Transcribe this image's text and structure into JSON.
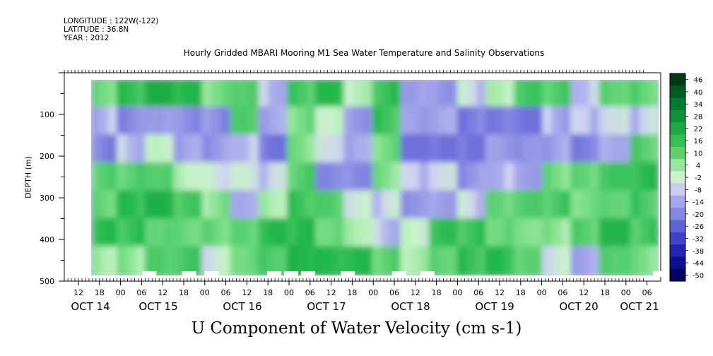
{
  "meta": {
    "longitude": "LONGITUDE : 122W(-122)",
    "latitude": "LATITUDE : 36.8N",
    "year": "YEAR : 2012"
  },
  "title": "Hourly Gridded MBARI Mooring M1 Sea Water Temperature and Salinity Observations",
  "variable_label": "U Component of Water Velocity (cm s-1)",
  "chart_data": {
    "type": "heatmap",
    "title": "Hourly Gridded MBARI Mooring M1 Sea Water Temperature and Salinity Observations",
    "xlabel": "",
    "ylabel": "DEPTH (m)",
    "colorbar_label": "U Component of Water Velocity (cm s-1)",
    "y_axis": {
      "range": [
        500,
        0
      ],
      "ticks": [
        100,
        200,
        300,
        400,
        500
      ],
      "reversed": true
    },
    "x_axis": {
      "hour_tick_labels": [
        "12",
        "18",
        "00",
        "06",
        "12",
        "18",
        "00",
        "06",
        "12",
        "18",
        "00",
        "06",
        "12",
        "18",
        "00",
        "06",
        "12",
        "18",
        "00",
        "06",
        "12",
        "18",
        "00",
        "06",
        "12",
        "18",
        "00",
        "06",
        "12",
        "18",
        "00",
        "06"
      ],
      "date_labels": [
        "OCT 14",
        "OCT 15",
        "OCT 16",
        "OCT 17",
        "OCT 18",
        "OCT 19",
        "OCT 20",
        "OCT 21"
      ]
    },
    "colorbar": {
      "levels": [
        46,
        40,
        34,
        28,
        22,
        16,
        10,
        4,
        -2,
        -8,
        -14,
        -20,
        -26,
        -32,
        -38,
        -44,
        -50
      ],
      "colors": {
        "strong_positive": "#004d1a",
        "positive": "#22b84a",
        "weak_positive": "#bff0c0",
        "weak_negative": "#c8c8f2",
        "negative": "#8c8ce6",
        "strong_negative": "#000066"
      }
    },
    "data_extent": {
      "x_start": "OCT 14 18",
      "x_end": "OCT 21 09",
      "depth_top": 20,
      "depth_bottom": 485
    },
    "columns": [
      {
        "t": 0.0,
        "w": 0.045,
        "p": [
          8,
          -12,
          -14,
          6,
          10,
          12,
          4
        ]
      },
      {
        "t": 0.045,
        "w": 0.05,
        "p": [
          12,
          -14,
          -10,
          10,
          14,
          14,
          2
        ]
      },
      {
        "t": 0.095,
        "w": 0.05,
        "p": [
          18,
          -8,
          -6,
          14,
          16,
          12,
          6
        ]
      },
      {
        "t": 0.145,
        "w": 0.05,
        "p": [
          14,
          -12,
          -14,
          2,
          8,
          10,
          8
        ]
      },
      {
        "t": 0.195,
        "w": 0.05,
        "p": [
          6,
          -16,
          -12,
          -6,
          4,
          6,
          -4
        ]
      },
      {
        "t": 0.245,
        "w": 0.05,
        "p": [
          14,
          6,
          -4,
          -8,
          -6,
          4,
          10
        ]
      },
      {
        "t": 0.295,
        "w": 0.05,
        "p": [
          -6,
          -14,
          -16,
          -10,
          4,
          12,
          14
        ]
      },
      {
        "t": 0.345,
        "w": 0.05,
        "p": [
          10,
          6,
          4,
          10,
          12,
          16,
          18
        ]
      },
      {
        "t": 0.395,
        "w": 0.05,
        "p": [
          12,
          2,
          -10,
          -12,
          6,
          10,
          12
        ]
      },
      {
        "t": 0.445,
        "w": 0.05,
        "p": [
          -4,
          -10,
          -14,
          -12,
          -8,
          4,
          12
        ]
      },
      {
        "t": 0.495,
        "w": 0.05,
        "p": [
          14,
          12,
          6,
          4,
          -6,
          -8,
          8
        ]
      },
      {
        "t": 0.545,
        "w": 0.05,
        "p": [
          -8,
          -16,
          -18,
          -12,
          -10,
          -6,
          4
        ]
      },
      {
        "t": 0.595,
        "w": 0.05,
        "p": [
          -10,
          -14,
          -16,
          -10,
          -8,
          10,
          12
        ]
      },
      {
        "t": 0.645,
        "w": 0.05,
        "p": [
          -6,
          -18,
          -20,
          -14,
          -6,
          12,
          14
        ]
      },
      {
        "t": 0.695,
        "w": 0.05,
        "p": [
          -4,
          -14,
          -16,
          -6,
          4,
          10,
          12
        ]
      },
      {
        "t": 0.745,
        "w": 0.05,
        "p": [
          8,
          -16,
          -18,
          -8,
          6,
          8,
          4
        ]
      },
      {
        "t": 0.795,
        "w": 0.05,
        "p": [
          10,
          -10,
          -12,
          6,
          10,
          4,
          -6
        ]
      },
      {
        "t": 0.845,
        "w": 0.05,
        "p": [
          -4,
          -12,
          -14,
          4,
          8,
          6,
          -8
        ]
      },
      {
        "t": 0.895,
        "w": 0.055,
        "p": [
          12,
          -10,
          -6,
          8,
          12,
          14,
          14
        ]
      },
      {
        "t": 0.95,
        "w": 0.05,
        "p": [
          8,
          -8,
          10,
          14,
          12,
          10,
          6
        ]
      }
    ],
    "gaps_at_bottom": [
      0.09,
      0.16,
      0.2,
      0.31,
      0.34,
      0.37,
      0.44,
      0.53,
      0.58,
      0.99
    ]
  }
}
